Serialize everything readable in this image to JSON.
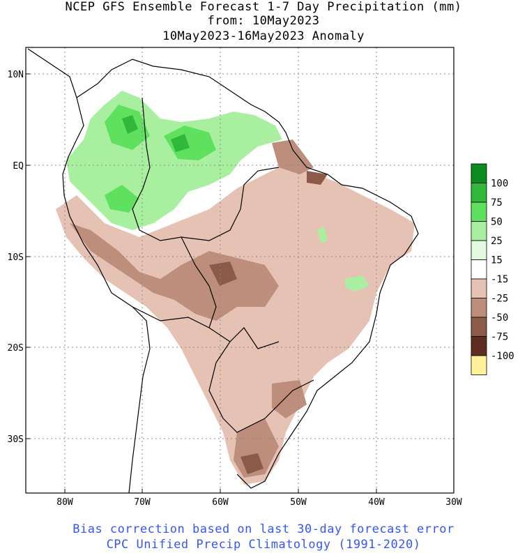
{
  "header": {
    "line1": "NCEP GFS Ensemble Forecast 1-7 Day Precipitation (mm)",
    "line2": "from: 10May2023",
    "line3": "10May2023-16May2023 Anomaly"
  },
  "axes": {
    "lat_labels": [
      "10N",
      "EQ",
      "10S",
      "20S",
      "30S"
    ],
    "lon_labels": [
      "80W",
      "70W",
      "60W",
      "50W",
      "40W",
      "30W"
    ]
  },
  "legend": {
    "labels": [
      "100",
      "75",
      "50",
      "25",
      "15",
      "-15",
      "-25",
      "-50",
      "-75",
      "-100"
    ],
    "colors": [
      "#0a8c1e",
      "#2fb83a",
      "#5fe05f",
      "#a8f0a0",
      "#e2fbe0",
      "#ffffff",
      "#e6c2b4",
      "#bd8e7c",
      "#8c5a48",
      "#5e2c20",
      "#fff29a"
    ]
  },
  "footer": {
    "line1": "Bias correction based on last 30-day forecast error",
    "line2": "CPC Unified Precip Climatology (1991-2020)"
  }
}
